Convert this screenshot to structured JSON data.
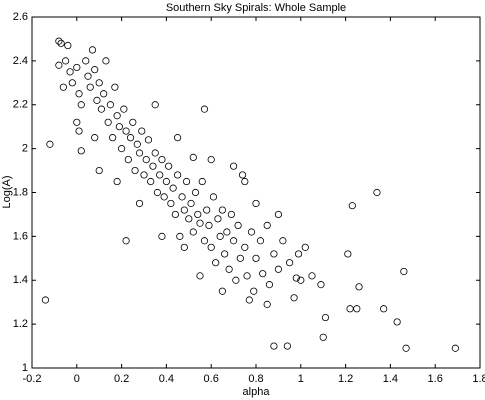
{
  "chart_data": {
    "type": "scatter",
    "title": "Southern Sky Spirals: Whole Sample",
    "x_label": "alpha",
    "y_label": "Log(A)",
    "xlim": [
      -0.2,
      1.8
    ],
    "ylim": [
      1,
      2.6
    ],
    "xticks": [
      -0.2,
      0,
      0.2,
      0.4,
      0.6,
      0.8,
      1,
      1.2,
      1.4,
      1.6,
      1.8
    ],
    "yticks": [
      1,
      1.2,
      1.4,
      1.6,
      1.8,
      2,
      2.2,
      2.4,
      2.6
    ],
    "grid": false,
    "color": "#000000",
    "x": [
      -0.08,
      -0.07,
      -0.04,
      -0.05,
      -0.08,
      -0.06,
      -0.03,
      -0.02,
      0.0,
      0.01,
      0.02,
      0.0,
      0.01,
      0.02,
      0.04,
      0.05,
      0.06,
      0.07,
      0.08,
      0.09,
      0.1,
      0.11,
      0.12,
      0.13,
      0.14,
      0.15,
      0.16,
      0.17,
      0.18,
      0.19,
      0.2,
      0.21,
      0.22,
      0.23,
      0.24,
      0.25,
      0.26,
      0.27,
      0.28,
      0.29,
      0.3,
      0.31,
      0.32,
      0.33,
      0.34,
      0.35,
      0.36,
      0.37,
      0.38,
      0.39,
      0.4,
      0.41,
      0.42,
      0.43,
      0.44,
      0.45,
      0.46,
      0.47,
      0.48,
      0.49,
      0.5,
      0.51,
      0.52,
      0.53,
      0.54,
      0.55,
      0.56,
      0.57,
      0.58,
      0.59,
      0.6,
      0.61,
      0.62,
      0.63,
      0.64,
      0.65,
      0.66,
      0.67,
      0.68,
      0.69,
      0.7,
      0.71,
      0.72,
      0.73,
      0.74,
      0.75,
      0.76,
      0.78,
      0.79,
      0.8,
      0.82,
      0.83,
      0.85,
      0.86,
      0.88,
      0.9,
      0.92,
      0.95,
      0.97,
      1.0,
      1.02,
      1.05,
      0.35,
      0.45,
      0.52,
      0.6,
      0.7,
      0.75,
      0.57,
      0.48,
      0.38,
      0.22,
      0.18,
      0.1,
      0.08,
      0.28,
      0.65,
      0.55,
      0.8,
      0.9,
      -0.14,
      -0.12,
      1.69,
      1.47,
      1.46,
      1.43,
      1.37,
      1.34,
      1.23,
      1.21,
      1.26,
      1.25,
      1.22,
      1.11,
      1.1,
      0.94,
      1.09,
      0.99,
      0.98,
      0.88,
      0.85,
      0.77
    ],
    "values": [
      2.49,
      2.48,
      2.47,
      2.4,
      2.38,
      2.28,
      2.35,
      2.3,
      2.37,
      2.25,
      2.2,
      2.12,
      2.08,
      1.99,
      2.4,
      2.33,
      2.28,
      2.45,
      2.36,
      2.22,
      2.3,
      2.18,
      2.25,
      2.4,
      2.12,
      2.2,
      2.05,
      2.28,
      2.15,
      2.1,
      2.0,
      2.18,
      2.08,
      1.95,
      2.05,
      2.12,
      1.9,
      2.02,
      1.98,
      2.08,
      1.88,
      1.95,
      2.04,
      1.85,
      1.92,
      1.98,
      1.8,
      1.88,
      1.95,
      1.78,
      1.85,
      1.92,
      1.75,
      1.82,
      1.7,
      1.88,
      1.6,
      1.78,
      1.72,
      1.85,
      1.68,
      1.75,
      1.62,
      1.8,
      1.7,
      1.66,
      1.85,
      1.58,
      1.72,
      1.65,
      1.55,
      1.78,
      1.48,
      1.68,
      1.6,
      1.72,
      1.52,
      1.62,
      1.45,
      1.7,
      1.58,
      1.4,
      1.65,
      1.5,
      1.88,
      1.55,
      1.42,
      1.62,
      1.35,
      1.5,
      1.58,
      1.43,
      1.65,
      1.38,
      1.52,
      1.45,
      1.58,
      1.48,
      1.32,
      1.4,
      1.55,
      1.42,
      2.2,
      2.05,
      1.96,
      1.95,
      1.92,
      1.85,
      2.18,
      1.55,
      1.6,
      1.58,
      1.85,
      1.9,
      2.05,
      1.75,
      1.35,
      1.42,
      1.75,
      1.7,
      1.31,
      2.02,
      1.09,
      1.09,
      1.44,
      1.21,
      1.27,
      1.8,
      1.74,
      1.52,
      1.37,
      1.27,
      1.27,
      1.23,
      1.14,
      1.1,
      1.38,
      1.52,
      1.41,
      1.1,
      1.29,
      1.31
    ]
  }
}
